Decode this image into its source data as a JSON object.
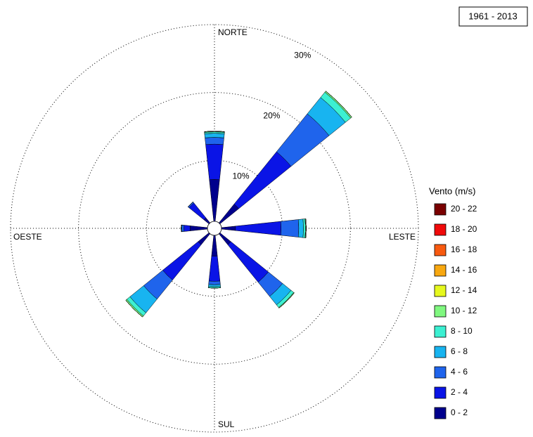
{
  "chart_data": {
    "type": "windrose",
    "title": "1961 - 2013",
    "legend_title": "Vento (m/s)",
    "compass_labels": [
      "NORTE",
      "LESTE",
      "SUL",
      "OESTE"
    ],
    "theta": [
      0,
      45,
      90,
      135,
      180,
      225,
      270,
      315
    ],
    "rlim": [
      0,
      30
    ],
    "rticks": [
      {
        "value": 10,
        "label": "10%"
      },
      {
        "value": 20,
        "label": "20%"
      },
      {
        "value": 30,
        "label": "30%"
      }
    ],
    "grid": true,
    "series": [
      {
        "name": "0 - 2",
        "color": "#00008c",
        "values": [
          7.2,
          4.6,
          3.1,
          3.1,
          4.1,
          3.1,
          3.6,
          2.0
        ]
      },
      {
        "name": "2 - 4",
        "color": "#0a14e6",
        "values": [
          5.2,
          9.9,
          6.7,
          7.1,
          3.7,
          6.7,
          0.9,
          2.8
        ]
      },
      {
        "name": "4 - 6",
        "color": "#1f64ec",
        "values": [
          1.0,
          7.2,
          2.6,
          2.7,
          0.5,
          3.6,
          0.3,
          0.2
        ]
      },
      {
        "name": "6 - 8",
        "color": "#18b4f0",
        "values": [
          0.6,
          3.1,
          0.7,
          1.6,
          0.3,
          2.6,
          0.1,
          0
        ]
      },
      {
        "name": "8 - 10",
        "color": "#3cf0d2",
        "values": [
          0.2,
          1.0,
          0.3,
          0.5,
          0.2,
          0.6,
          0,
          0
        ]
      },
      {
        "name": "10 - 12",
        "color": "#80f880",
        "values": [
          0.1,
          0.2,
          0.1,
          0.1,
          0,
          0.2,
          0,
          0
        ]
      },
      {
        "name": "12 - 14",
        "color": "#e6f81e",
        "values": [
          0,
          0,
          0,
          0,
          0,
          0,
          0,
          0
        ]
      },
      {
        "name": "14 - 16",
        "color": "#f8a810",
        "values": [
          0,
          0,
          0,
          0,
          0,
          0,
          0,
          0
        ]
      },
      {
        "name": "16 - 18",
        "color": "#f85a10",
        "values": [
          0,
          0,
          0,
          0,
          0,
          0,
          0,
          0
        ]
      },
      {
        "name": "18 - 20",
        "color": "#f00a0a",
        "values": [
          0,
          0,
          0,
          0,
          0,
          0,
          0,
          0
        ]
      },
      {
        "name": "20 - 22",
        "color": "#7a0000",
        "values": [
          0,
          0,
          0,
          0,
          0,
          0,
          0,
          0
        ]
      }
    ]
  }
}
